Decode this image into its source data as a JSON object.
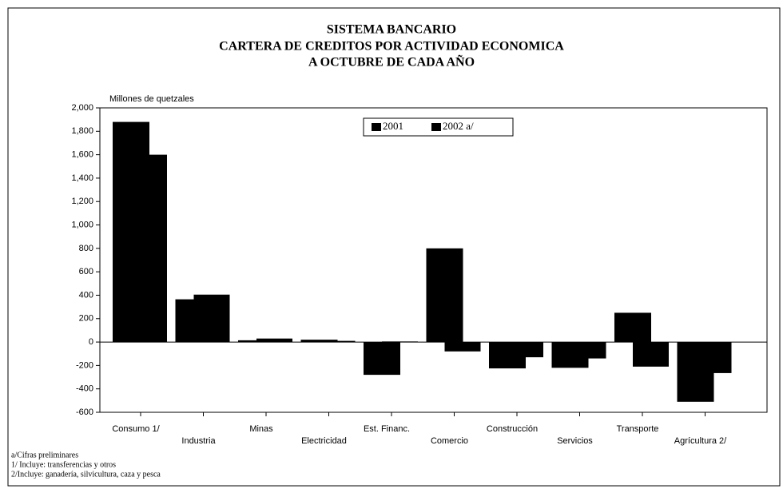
{
  "chart_data": {
    "type": "bar",
    "title": [
      "SISTEMA BANCARIO",
      "CARTERA DE CREDITOS POR  ACTIVIDAD ECONOMICA",
      "A OCTUBRE DE CADA AÑO"
    ],
    "y_label": "Millones de quetzales",
    "categories": [
      "Consumo 1/",
      "Industria",
      "Minas",
      "Electricidad",
      "Est. Financ.",
      "Comercio",
      "Construcción",
      "Servicios",
      "Transporte",
      "Agrícultura 2/"
    ],
    "series": [
      {
        "name": "2001",
        "color": "#000000",
        "values": [
          1880,
          365,
          15,
          20,
          -280,
          800,
          -225,
          -220,
          250,
          -510
        ]
      },
      {
        "name": "2002 a/",
        "color": "#000000",
        "values": [
          1600,
          405,
          30,
          10,
          5,
          -80,
          -130,
          -140,
          -210,
          -265
        ]
      }
    ],
    "ylim": [
      -600,
      2000
    ],
    "yticks": [
      {
        "value": 2000,
        "label": "2,000"
      },
      {
        "value": 1800,
        "label": "1,800"
      },
      {
        "value": 1600,
        "label": "1,600"
      },
      {
        "value": 1400,
        "label": "1,400"
      },
      {
        "value": 1200,
        "label": "1,200"
      },
      {
        "value": 1000,
        "label": "1,000"
      },
      800,
      600,
      400,
      200,
      0,
      -200,
      -400,
      -600
    ],
    "notes": [
      "a/Cifras preliminares",
      "1/ Incluye: transferencias y otros",
      "2/Incluye: ganadería, silvicultura, caza y pesca"
    ]
  }
}
